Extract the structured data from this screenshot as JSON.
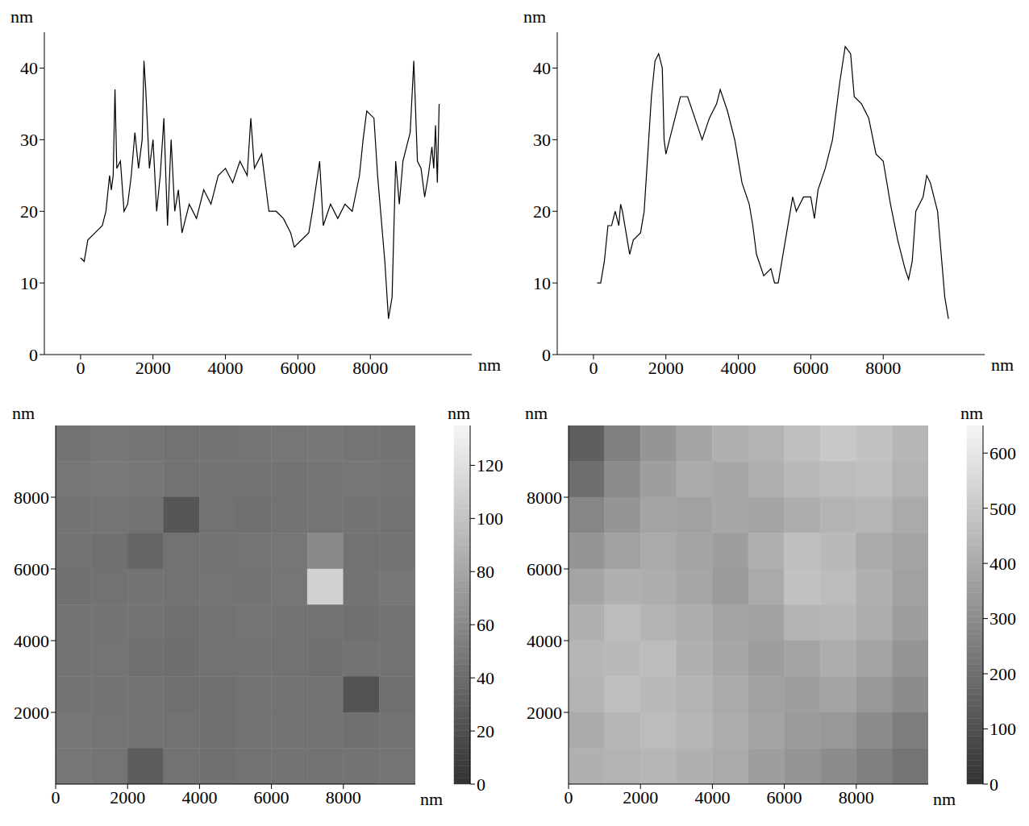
{
  "chart_data": [
    {
      "type": "line",
      "color": "#000000",
      "grid": false,
      "x_label": "nm",
      "y_label": "nm",
      "xlim": [
        -1000,
        10800
      ],
      "ylim": [
        0,
        45
      ],
      "xticks": [
        0,
        2000,
        4000,
        6000,
        8000
      ],
      "yticks": [
        0,
        10,
        20,
        30,
        40
      ],
      "x": [
        0,
        100,
        200,
        400,
        600,
        700,
        800,
        850,
        900,
        950,
        1000,
        1100,
        1200,
        1300,
        1400,
        1500,
        1600,
        1700,
        1750,
        1800,
        1900,
        2000,
        2100,
        2200,
        2300,
        2400,
        2500,
        2600,
        2700,
        2800,
        3000,
        3200,
        3400,
        3600,
        3800,
        4000,
        4200,
        4400,
        4600,
        4700,
        4800,
        5000,
        5100,
        5200,
        5400,
        5600,
        5800,
        5900,
        6100,
        6300,
        6400,
        6600,
        6700,
        6900,
        7100,
        7300,
        7500,
        7700,
        7800,
        7900,
        8100,
        8200,
        8400,
        8500,
        8600,
        8700,
        8800,
        8900,
        9000,
        9100,
        9200,
        9300,
        9400,
        9500,
        9600,
        9700,
        9750,
        9800,
        9850,
        9900
      ],
      "values": [
        13.5,
        13,
        16,
        17,
        18,
        20,
        25,
        23,
        25,
        37,
        26,
        27,
        20,
        21,
        25,
        31,
        26,
        30,
        41,
        37,
        26,
        30,
        20,
        25,
        33,
        18,
        30,
        20,
        23,
        17,
        21,
        19,
        23,
        21,
        25,
        26,
        24,
        27,
        25,
        33,
        26,
        28,
        24,
        20,
        20,
        19,
        17,
        15,
        16,
        17,
        20,
        27,
        18,
        21,
        19,
        21,
        20,
        25,
        30,
        34,
        33,
        25,
        13,
        5,
        8,
        27,
        21,
        27,
        29,
        31,
        41,
        27,
        26,
        22,
        25,
        29,
        26,
        32,
        24,
        35
      ]
    },
    {
      "type": "line",
      "color": "#000000",
      "grid": false,
      "x_label": "nm",
      "y_label": "nm",
      "xlim": [
        -1000,
        10800
      ],
      "ylim": [
        0,
        45
      ],
      "xticks": [
        0,
        2000,
        4000,
        6000,
        8000
      ],
      "yticks": [
        0,
        10,
        20,
        30,
        40
      ],
      "x": [
        100,
        200,
        300,
        400,
        500,
        600,
        700,
        750,
        800,
        900,
        1000,
        1100,
        1300,
        1400,
        1500,
        1600,
        1700,
        1800,
        1900,
        1950,
        2000,
        2200,
        2400,
        2600,
        2800,
        3000,
        3200,
        3400,
        3500,
        3700,
        3900,
        4100,
        4300,
        4400,
        4500,
        4700,
        4900,
        5000,
        5100,
        5300,
        5500,
        5600,
        5800,
        6000,
        6100,
        6200,
        6400,
        6600,
        6800,
        6950,
        7100,
        7200,
        7400,
        7600,
        7800,
        8000,
        8200,
        8400,
        8600,
        8700,
        8800,
        8900,
        9100,
        9200,
        9300,
        9500,
        9600,
        9700,
        9800
      ],
      "values": [
        10,
        10,
        13,
        18,
        18,
        20,
        18,
        21,
        20,
        17,
        14,
        16,
        17,
        20,
        28,
        36,
        41,
        42,
        40,
        30,
        28,
        32,
        36,
        36,
        33,
        30,
        33,
        35,
        37,
        34,
        30,
        24,
        21,
        18,
        14,
        11,
        12,
        10,
        10,
        16,
        22,
        20,
        22,
        22,
        19,
        23,
        26,
        30,
        38,
        43,
        42,
        36,
        35,
        33,
        28,
        27,
        21,
        16,
        12,
        10.5,
        13,
        20,
        22,
        25,
        24,
        20,
        14,
        8,
        5
      ]
    },
    {
      "type": "heatmap",
      "x_label": "nm",
      "y_label": "nm",
      "xlim": [
        0,
        10000
      ],
      "ylim": [
        0,
        10000
      ],
      "xticks": [
        0,
        2000,
        4000,
        6000,
        8000
      ],
      "yticks": [
        2000,
        4000,
        6000,
        8000
      ],
      "colorbar_label": "nm",
      "colorbar_range": [
        0,
        135
      ],
      "colorbar_ticks": [
        0,
        20,
        40,
        60,
        80,
        100,
        120
      ],
      "cells": [
        [
          45,
          48,
          46,
          44,
          45,
          46,
          47,
          48,
          46,
          45
        ],
        [
          47,
          50,
          48,
          44,
          45,
          44,
          45,
          46,
          47,
          46
        ],
        [
          45,
          46,
          44,
          25,
          44,
          43,
          45,
          46,
          45,
          44
        ],
        [
          44,
          43,
          35,
          44,
          45,
          46,
          47,
          60,
          44,
          45
        ],
        [
          43,
          44,
          45,
          44,
          46,
          45,
          47,
          110,
          45,
          48
        ],
        [
          44,
          45,
          44,
          43,
          44,
          46,
          45,
          44,
          43,
          44
        ],
        [
          45,
          46,
          43,
          42,
          44,
          45,
          44,
          43,
          45,
          44
        ],
        [
          44,
          45,
          44,
          43,
          43,
          44,
          45,
          44,
          22,
          43
        ],
        [
          47,
          46,
          45,
          44,
          43,
          44,
          45,
          44,
          43,
          44
        ],
        [
          48,
          46,
          30,
          44,
          43,
          44,
          45,
          44,
          45,
          46
        ]
      ]
    },
    {
      "type": "heatmap",
      "x_label": "nm",
      "y_label": "nm",
      "xlim": [
        0,
        10000
      ],
      "ylim": [
        0,
        10000
      ],
      "xticks": [
        0,
        2000,
        4000,
        6000,
        8000
      ],
      "yticks": [
        2000,
        4000,
        6000,
        8000
      ],
      "colorbar_label": "nm",
      "colorbar_range": [
        0,
        650
      ],
      "colorbar_ticks": [
        0,
        100,
        200,
        300,
        400,
        500,
        600
      ],
      "cells": [
        [
          150,
          260,
          330,
          380,
          420,
          430,
          470,
          500,
          480,
          440
        ],
        [
          200,
          300,
          360,
          400,
          390,
          420,
          450,
          460,
          470,
          430
        ],
        [
          280,
          330,
          380,
          370,
          390,
          380,
          410,
          430,
          440,
          400
        ],
        [
          330,
          370,
          400,
          380,
          360,
          420,
          470,
          450,
          400,
          380
        ],
        [
          380,
          420,
          410,
          390,
          350,
          400,
          480,
          460,
          420,
          370
        ],
        [
          420,
          460,
          430,
          410,
          380,
          370,
          430,
          440,
          410,
          360
        ],
        [
          440,
          450,
          460,
          420,
          390,
          360,
          380,
          410,
          380,
          330
        ],
        [
          430,
          470,
          450,
          430,
          400,
          370,
          360,
          380,
          340,
          300
        ],
        [
          400,
          440,
          460,
          440,
          410,
          380,
          350,
          340,
          300,
          250
        ],
        [
          420,
          430,
          440,
          420,
          400,
          360,
          330,
          300,
          260,
          220
        ]
      ]
    }
  ]
}
